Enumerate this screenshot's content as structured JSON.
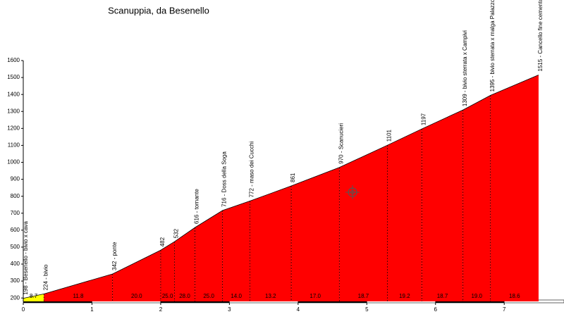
{
  "chart_data": {
    "type": "profile",
    "title": "Scanuppia, da Besenello",
    "x": [
      0,
      0.3,
      1.3,
      2.0,
      2.2,
      2.5,
      2.9,
      3.3,
      3.9,
      4.6,
      5.3,
      5.8,
      6.4,
      6.8,
      7.5
    ],
    "values": [
      198,
      224,
      342,
      482,
      532,
      616,
      716,
      772,
      861,
      970,
      1101,
      1197,
      1309,
      1395,
      1515
    ],
    "value_labels": [
      "198 - Besenello - bivio x cava",
      "224 - bivio",
      "342 - ponte",
      "482",
      "532",
      "616 - tornante",
      "716 - Doss della Soga",
      "772 - maso dei Cucchi",
      "861",
      "970 - Scanucieri",
      "1101",
      "1197",
      "1309 - bivio sterrata x Campivi",
      "1395 - bivio sterrata x malga Palazzo",
      "1515 - Cancello fine cemento"
    ],
    "gradients": [
      8.7,
      11.8,
      {
        "value": 20,
        "label": "20.0"
      },
      {
        "value": 25,
        "label": "25.0"
      },
      {
        "value": 28,
        "label": "28.0"
      },
      {
        "value": 25,
        "label": "25.0"
      },
      {
        "value": 14,
        "label": "14.0"
      },
      13.2,
      {
        "value": 17,
        "label": "17.0"
      },
      18.7,
      19.2,
      18.7,
      {
        "value": 19,
        "label": "19.0"
      },
      18.6
    ],
    "segment_colors": [
      "#ffff00",
      "#ff0000",
      "#ff0000",
      "#ff0000",
      "#ff0000",
      "#ff0000",
      "#ff0000",
      "#ff0000",
      "#ff0000",
      "#ff0000",
      "#ff0000",
      "#ff0000",
      "#ff0000",
      "#ff0000"
    ],
    "xlim": [
      0,
      7.87
    ],
    "ylim": [
      180,
      1600
    ],
    "xticks": [
      0,
      1,
      2,
      3,
      4,
      5,
      6,
      7
    ],
    "yticks": [
      200,
      300,
      400,
      500,
      600,
      700,
      800,
      900,
      1000,
      1100,
      1200,
      1300,
      1400,
      1500,
      1600
    ]
  }
}
